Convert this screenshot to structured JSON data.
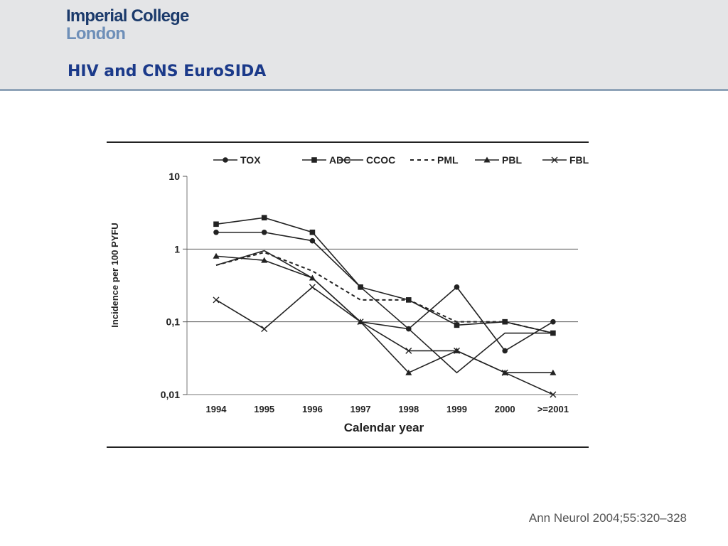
{
  "header": {
    "logo_line1": "Imperial College",
    "logo_line2": "London",
    "title": "HIV and CNS EuroSIDA"
  },
  "citation": "Ann Neurol 2004;55:320–328",
  "colors": {
    "header_bg": "#e4e5e7",
    "header_rule": "#8fa3b8",
    "title": "#1b3a8a",
    "logo_dark": "#1b3a6b",
    "logo_light": "#6e8fb8",
    "series": "#222222"
  },
  "chart_data": {
    "type": "line",
    "title": "",
    "xlabel": "Calendar year",
    "ylabel": "Incidence per 100 PYFU",
    "y_scale": "log",
    "ylim": [
      0.01,
      10
    ],
    "y_ticks": [
      {
        "value": 10,
        "label": "10"
      },
      {
        "value": 1,
        "label": "1"
      },
      {
        "value": 0.1,
        "label": "0,1"
      },
      {
        "value": 0.01,
        "label": "0,01"
      }
    ],
    "grid": "horizontal at 1 and 0,1",
    "legend_position": "top",
    "categories": [
      "1994",
      "1995",
      "1996",
      "1997",
      "1998",
      "1999",
      "2000",
      ">=2001"
    ],
    "series": [
      {
        "name": "TOX",
        "marker": "circle",
        "dash": "solid",
        "values": [
          1.7,
          1.7,
          1.3,
          0.3,
          0.08,
          0.3,
          0.04,
          0.1
        ]
      },
      {
        "name": "ADC",
        "marker": "square",
        "dash": "solid",
        "values": [
          2.2,
          2.7,
          1.7,
          0.3,
          0.2,
          0.09,
          0.1,
          0.07
        ]
      },
      {
        "name": "CCOC",
        "marker": "none",
        "dash": "solid",
        "values": [
          0.6,
          0.95,
          0.4,
          0.1,
          0.08,
          0.02,
          0.07,
          0.07
        ]
      },
      {
        "name": "PML",
        "marker": "none",
        "dash": "dashed",
        "values": [
          0.6,
          0.9,
          0.5,
          0.2,
          0.2,
          0.1,
          0.1,
          0.07
        ]
      },
      {
        "name": "PBL",
        "marker": "triangle",
        "dash": "solid",
        "values": [
          0.8,
          0.7,
          0.4,
          0.1,
          0.02,
          0.04,
          0.02,
          0.02
        ]
      },
      {
        "name": "FBL",
        "marker": "cross",
        "dash": "solid",
        "values": [
          0.2,
          0.08,
          0.3,
          0.1,
          0.04,
          0.04,
          0.02,
          0.01
        ]
      }
    ]
  }
}
